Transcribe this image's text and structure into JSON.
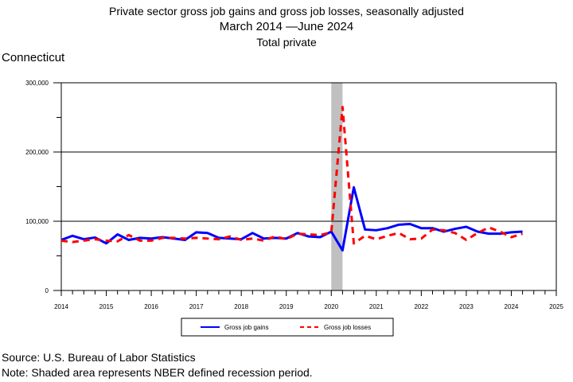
{
  "chart_data": {
    "type": "line",
    "title": "Private sector gross job gains and gross job losses, seasonally adjusted",
    "subtitle": "March 2014 —June 2024",
    "subtitle2": "Total private",
    "region": "Connecticut",
    "xlabel": "",
    "ylabel": "",
    "xlim": [
      2014,
      2025
    ],
    "ylim": [
      0,
      300000
    ],
    "x_ticks": [
      "2014",
      "2015",
      "2016",
      "2017",
      "2018",
      "2019",
      "2020",
      "2021",
      "2022",
      "2023",
      "2024",
      "2025"
    ],
    "y_ticks": [
      "0",
      "100,000",
      "200,000",
      "300,000"
    ],
    "recession": {
      "start": 2020.0,
      "end": 2020.25
    },
    "x_start": 2014.0,
    "x_step": 0.25,
    "series": [
      {
        "name": "Gross job gains",
        "color": "#0000ff",
        "style": "solid",
        "values": [
          73000,
          79000,
          74000,
          76500,
          68000,
          81000,
          73000,
          76000,
          75000,
          77000,
          75000,
          73000,
          84000,
          83000,
          76000,
          75000,
          74000,
          83000,
          75000,
          76000,
          75000,
          83000,
          78000,
          77000,
          85000,
          58000,
          149000,
          88000,
          87000,
          90000,
          95000,
          96000,
          90000,
          90000,
          85000,
          89000,
          92000,
          85000,
          82000,
          82000,
          84000,
          85000
        ]
      },
      {
        "name": "Gross job losses",
        "color": "#ff0000",
        "style": "dashed",
        "values": [
          72000,
          70000,
          72000,
          74000,
          72000,
          71000,
          80000,
          72000,
          72000,
          76000,
          76000,
          75000,
          76000,
          75000,
          74000,
          78000,
          73000,
          75000,
          72000,
          78000,
          74000,
          82000,
          81000,
          80000,
          84000,
          265000,
          68000,
          79000,
          74000,
          79000,
          83000,
          74000,
          75000,
          88000,
          87000,
          83000,
          73000,
          83000,
          91000,
          85000,
          77000,
          82000
        ]
      }
    ],
    "legend": "bottom-center"
  },
  "footer": {
    "source": "Source: U.S. Bureau of Labor Statistics",
    "note": "Note: Shaded area represents NBER defined recession period."
  }
}
